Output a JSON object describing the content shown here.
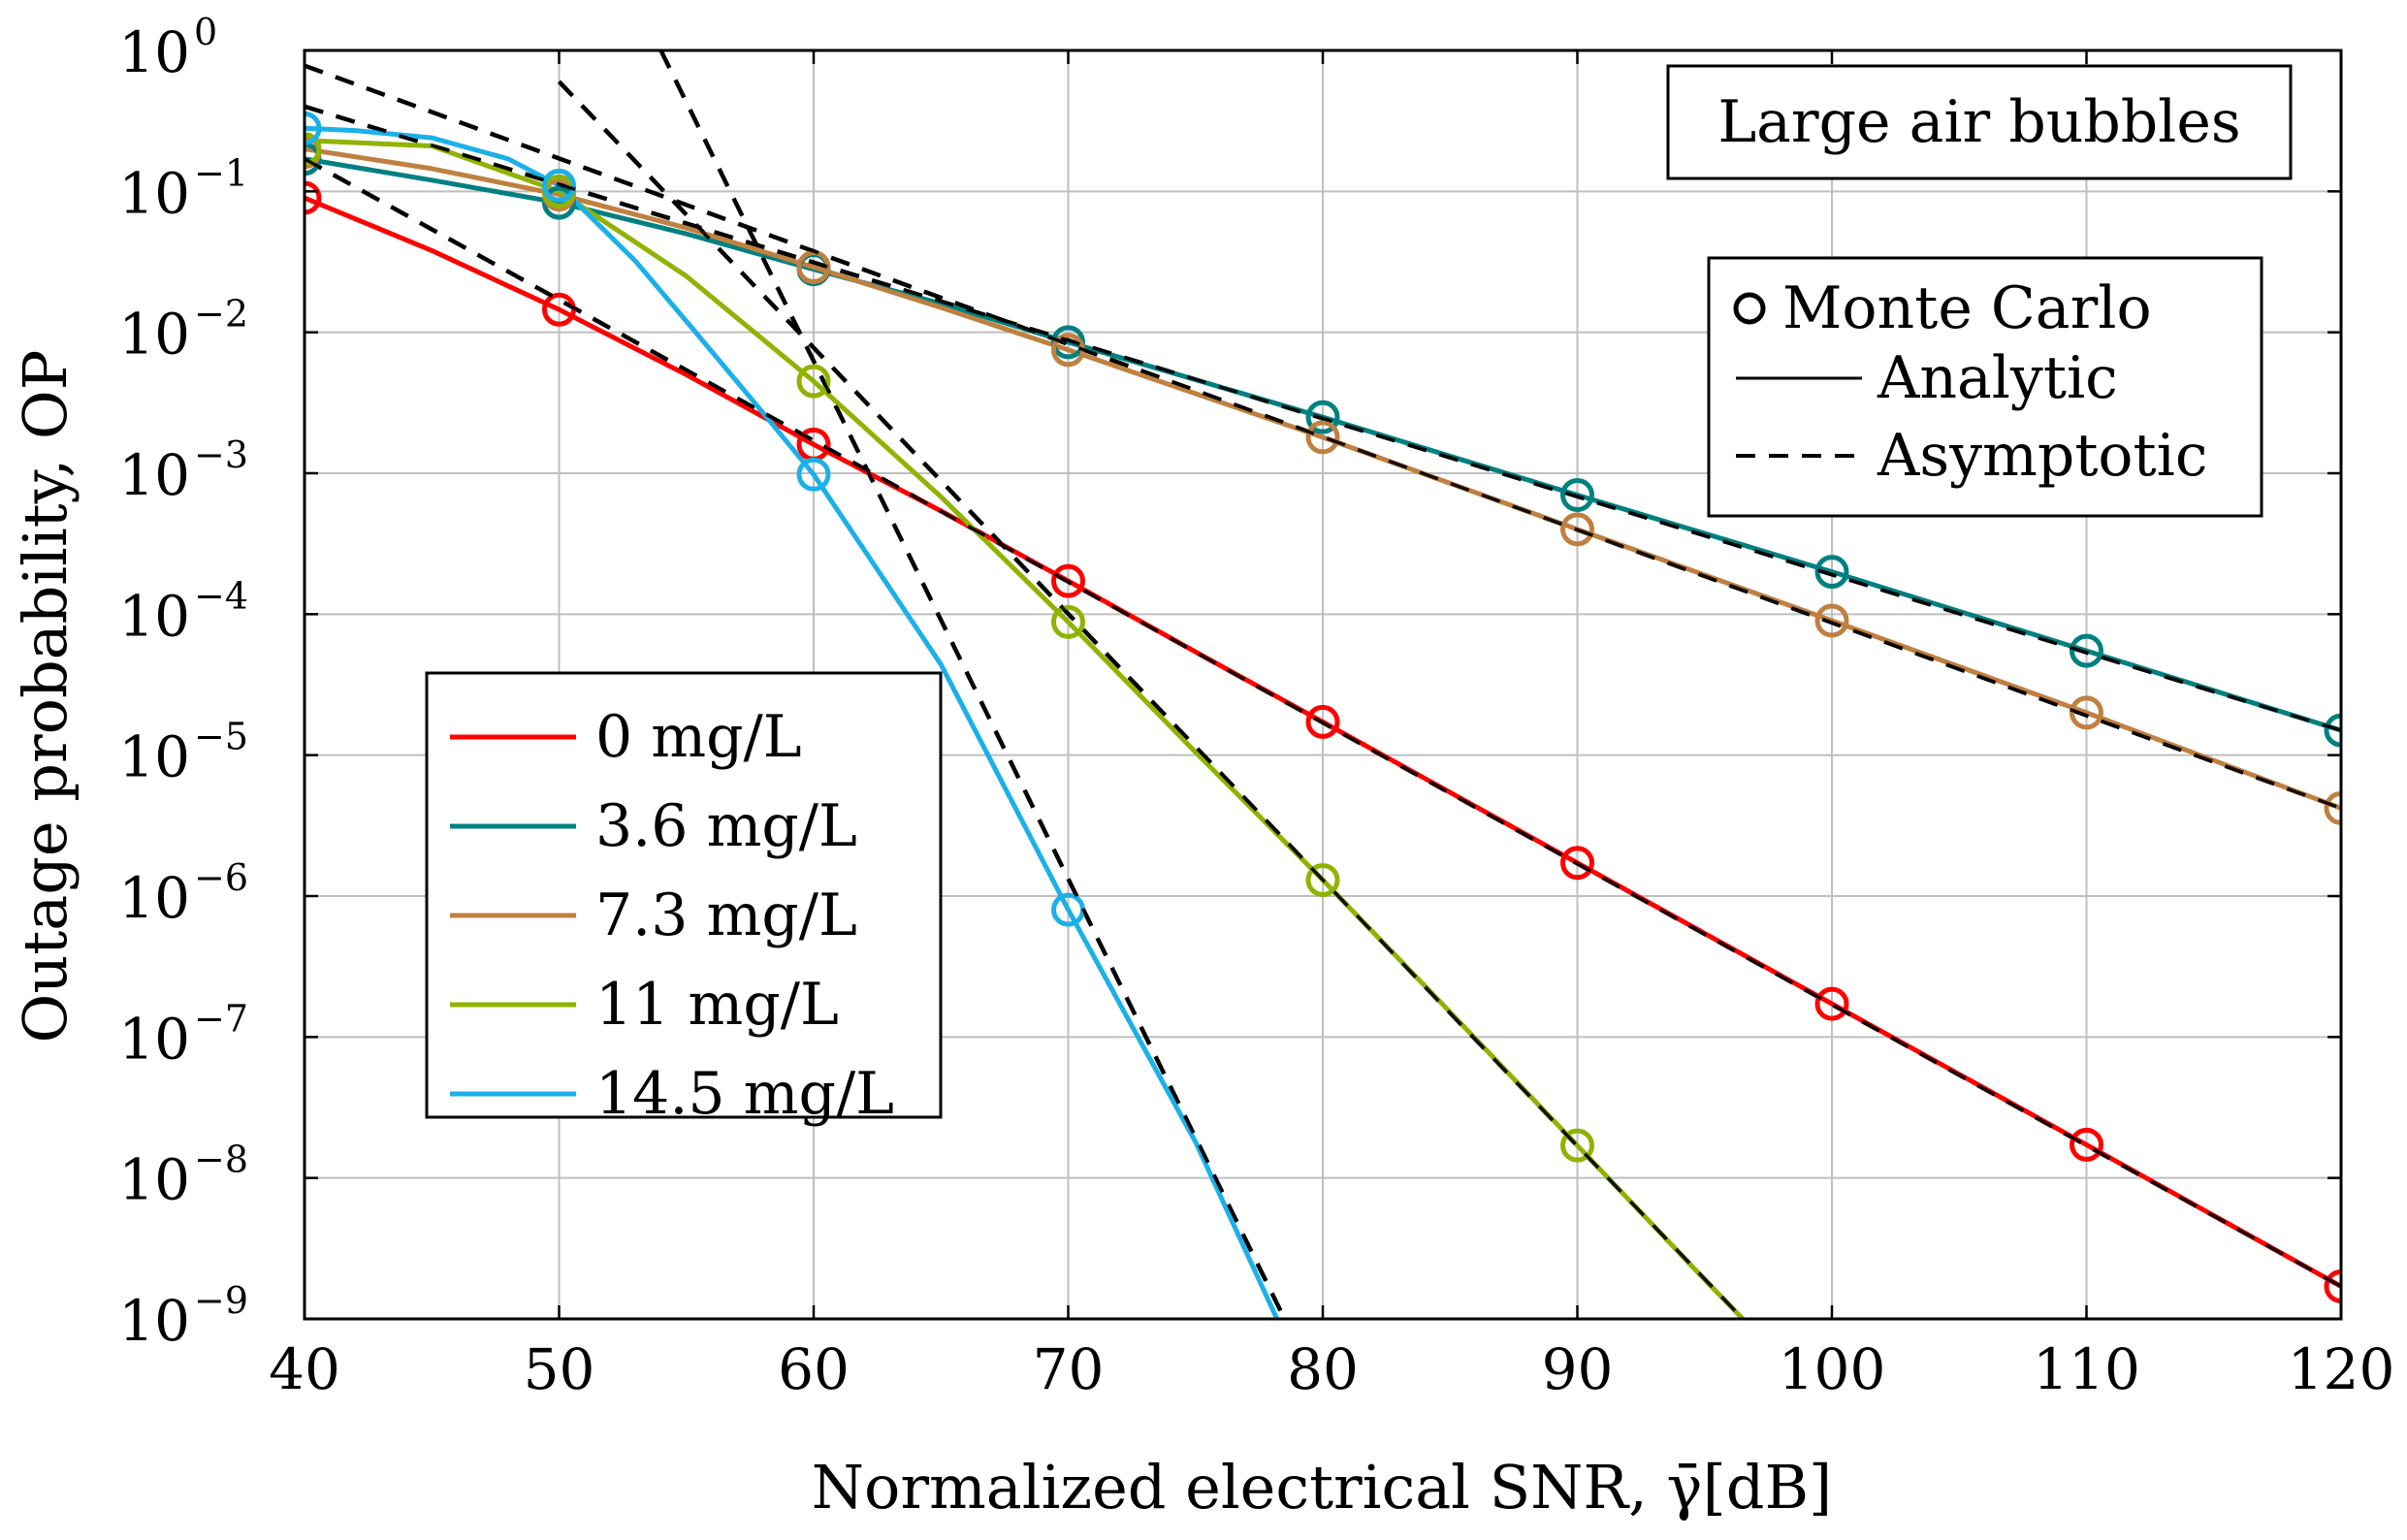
{
  "chart_data": {
    "type": "line",
    "title": "",
    "annotation": "Large air bubbles",
    "xlabel": "Normalized electrical SNR, γ̄[dB]",
    "ylabel": "Outage probability, OP",
    "xlim": [
      40,
      120
    ],
    "ylim_log10": [
      -9,
      0
    ],
    "yscale": "log",
    "grid": true,
    "xticks": [
      "40",
      "50",
      "60",
      "70",
      "80",
      "90",
      "100",
      "110",
      "120"
    ],
    "yticks": [
      {
        "base": "10",
        "exp": "0"
      },
      {
        "base": "10",
        "exp": "−1"
      },
      {
        "base": "10",
        "exp": "−2"
      },
      {
        "base": "10",
        "exp": "−3"
      },
      {
        "base": "10",
        "exp": "−4"
      },
      {
        "base": "10",
        "exp": "−5"
      },
      {
        "base": "10",
        "exp": "−6"
      },
      {
        "base": "10",
        "exp": "−7"
      },
      {
        "base": "10",
        "exp": "−8"
      },
      {
        "base": "10",
        "exp": "−9"
      }
    ],
    "marker_legend": {
      "location": "upper-right",
      "entries": [
        "Monte Carlo",
        "Analytic",
        "Asymptotic"
      ]
    },
    "series_legend": {
      "location": "lower-left"
    },
    "series": [
      {
        "name": "0 mg/L",
        "color": "#ff0000",
        "analytic_x": [
          40,
          45,
          50,
          55,
          60,
          65,
          70,
          75,
          80,
          90,
          100,
          110,
          120
        ],
        "analytic_y": [
          0.09,
          0.038,
          0.0145,
          0.005,
          0.0016,
          0.00054,
          0.000172,
          5.4e-05,
          1.72e-05,
          1.72e-06,
          1.72e-07,
          1.72e-08,
          1.7e-09
        ],
        "mc_x": [
          40,
          50,
          60,
          70,
          80,
          90,
          100,
          110,
          120
        ],
        "mc_y": [
          0.09,
          0.0145,
          0.0016,
          0.000172,
          1.72e-05,
          1.72e-06,
          1.72e-07,
          1.72e-08,
          1.7e-09
        ],
        "asym_x": [
          40,
          120
        ],
        "asym_y": [
          0.17,
          1.7e-09
        ]
      },
      {
        "name": "3.6 mg/L",
        "color": "#008080",
        "analytic_x": [
          40,
          45,
          50,
          55,
          60,
          65,
          70,
          80,
          90,
          100,
          110,
          120
        ],
        "analytic_y": [
          0.17,
          0.12,
          0.083,
          0.05,
          0.028,
          0.016,
          0.0085,
          0.0025,
          0.0007,
          0.0002,
          5.5e-05,
          1.5e-05
        ],
        "mc_x": [
          40,
          50,
          60,
          70,
          80,
          90,
          100,
          110,
          120
        ],
        "mc_y": [
          0.17,
          0.083,
          0.028,
          0.0085,
          0.0025,
          0.0007,
          0.0002,
          5.5e-05,
          1.5e-05
        ],
        "asym_x": [
          40,
          120
        ],
        "asym_y": [
          0.4,
          1.5e-05
        ]
      },
      {
        "name": "7.3 mg/L",
        "color": "#bf8040",
        "analytic_x": [
          40,
          45,
          50,
          55,
          60,
          65,
          70,
          80,
          90,
          100,
          110,
          120
        ],
        "analytic_y": [
          0.2,
          0.145,
          0.095,
          0.055,
          0.029,
          0.015,
          0.0075,
          0.0018,
          0.0004,
          9e-05,
          2e-05,
          4.2e-06
        ],
        "mc_x": [
          40,
          50,
          60,
          70,
          80,
          90,
          100,
          110,
          120
        ],
        "mc_y": [
          0.19,
          0.095,
          0.029,
          0.0075,
          0.0018,
          0.0004,
          9e-05,
          2e-05,
          4.2e-06
        ],
        "asym_x": [
          40,
          120
        ],
        "asym_y": [
          0.78,
          4.2e-06
        ]
      },
      {
        "name": "11 mg/L",
        "color": "#8fb300",
        "analytic_x": [
          40,
          45,
          50,
          55,
          60,
          65,
          70,
          75,
          80,
          85,
          90,
          95,
          96.5
        ],
        "analytic_y": [
          0.23,
          0.21,
          0.1,
          0.025,
          0.0045,
          0.00068,
          8.8e-05,
          1.05e-05,
          1.3e-06,
          1.5e-07,
          1.7e-08,
          1.9e-09,
          1e-09
        ],
        "mc_x": [
          40,
          50,
          60,
          70,
          80,
          90
        ],
        "mc_y": [
          0.2,
          0.1,
          0.0045,
          8.8e-05,
          1.3e-06,
          1.7e-08
        ],
        "asym_x": [
          50,
          96.5
        ],
        "asym_y": [
          0.6,
          1e-09
        ]
      },
      {
        "name": "14.5 mg/L",
        "color": "#1cb0e8",
        "analytic_x": [
          40,
          42,
          45,
          48,
          50,
          53,
          55,
          58,
          60,
          65,
          70,
          75,
          78.2
        ],
        "analytic_y": [
          0.28,
          0.27,
          0.24,
          0.17,
          0.11,
          0.032,
          0.012,
          0.0027,
          0.00098,
          4.4e-05,
          8e-07,
          1.8e-08,
          1e-09
        ],
        "mc_x": [
          40,
          50,
          60,
          70
        ],
        "mc_y": [
          0.28,
          0.11,
          0.00098,
          8e-07
        ],
        "asym_x": [
          54,
          78.5
        ],
        "asym_y": [
          1.0,
          1e-09
        ]
      }
    ]
  }
}
